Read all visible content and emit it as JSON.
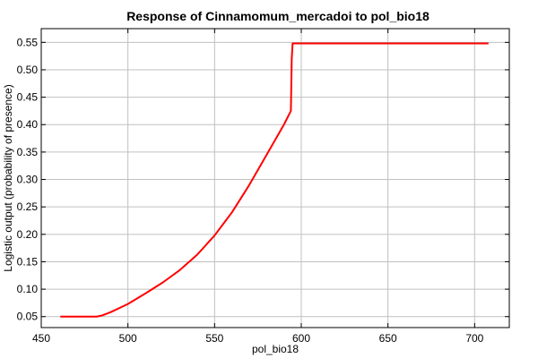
{
  "chart_data": {
    "type": "line",
    "title": "Response of Cinnamomum_mercadoi to pol_bio18",
    "xlabel": "pol_bio18",
    "ylabel": "Logistic output (probability of presence)",
    "xlim": [
      450,
      720
    ],
    "ylim": [
      0.03,
      0.575
    ],
    "xticks": [
      450,
      500,
      550,
      600,
      650,
      700
    ],
    "yticks": [
      0.05,
      0.1,
      0.15,
      0.2,
      0.25,
      0.3,
      0.35,
      0.4,
      0.45,
      0.5,
      0.55
    ],
    "xtick_labels": [
      "450",
      "500",
      "550",
      "600",
      "650",
      "700"
    ],
    "ytick_labels": [
      "0.05",
      "0.10",
      "0.15",
      "0.20",
      "0.25",
      "0.30",
      "0.35",
      "0.40",
      "0.45",
      "0.50",
      "0.55"
    ],
    "grid": true,
    "series": [
      {
        "color": "#ff0000",
        "x": [
          461,
          482,
          485,
          490,
          500,
          510,
          520,
          530,
          540,
          550,
          560,
          570,
          580,
          590,
          594,
          594.5,
          595,
          708
        ],
        "y": [
          0.05,
          0.05,
          0.052,
          0.058,
          0.073,
          0.092,
          0.112,
          0.135,
          0.163,
          0.198,
          0.24,
          0.29,
          0.345,
          0.4,
          0.425,
          0.52,
          0.548,
          0.548
        ]
      }
    ]
  }
}
